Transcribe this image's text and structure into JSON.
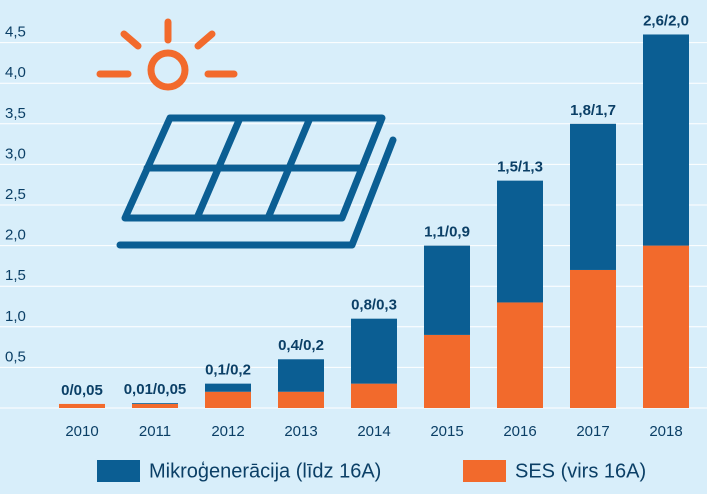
{
  "chart_data": {
    "type": "stacked_bar",
    "categories": [
      "2010",
      "2011",
      "2012",
      "2013",
      "2014",
      "2015",
      "2016",
      "2017",
      "2018"
    ],
    "series": [
      {
        "name": "SES (virs 16A)",
        "color": "#f26a2c",
        "values": [
          0.05,
          0.05,
          0.2,
          0.2,
          0.3,
          0.9,
          1.3,
          1.7,
          2.0
        ]
      },
      {
        "name": "Mikroģenerācija (līdz 16A)",
        "color": "#0b5e93",
        "values": [
          0,
          0.01,
          0.1,
          0.4,
          0.8,
          1.1,
          1.5,
          1.8,
          2.6
        ]
      }
    ],
    "labels": [
      "0/0,05",
      "0,01/0,05",
      "0,1/0,2",
      "0,4/0,2",
      "0,8/0,3",
      "1,1/0,9",
      "1,5/1,3",
      "1,8/1,7",
      "2,6/2,0"
    ],
    "ylim": [
      0,
      5
    ],
    "yticks": [
      {
        "value": 0.5,
        "label": "0,5"
      },
      {
        "value": 1.0,
        "label": "1,0"
      },
      {
        "value": 1.5,
        "label": "1,5"
      },
      {
        "value": 2.0,
        "label": "2,0"
      },
      {
        "value": 2.5,
        "label": "2,5"
      },
      {
        "value": 3.0,
        "label": "3,0"
      },
      {
        "value": 3.5,
        "label": "3,5"
      },
      {
        "value": 4.0,
        "label": "4,0"
      },
      {
        "value": 4.5,
        "label": "4,5"
      }
    ],
    "grid": true
  }
}
